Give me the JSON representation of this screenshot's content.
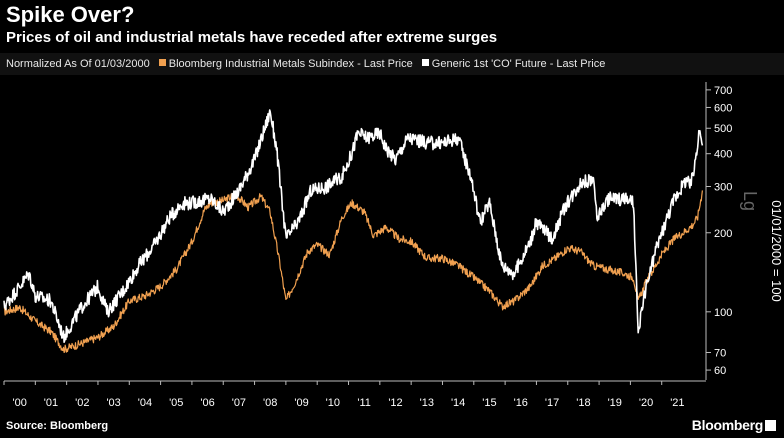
{
  "header": {
    "title": "Spike Over?",
    "subtitle": "Prices of oil and industrial metals have receded after extreme surges"
  },
  "legend": {
    "normalized_label": "Normalized As Of 01/03/2000",
    "series1_label": "Bloomberg Industrial Metals Subindex - Last Price",
    "series2_label": "Generic 1st 'CO' Future - Last Price"
  },
  "footer": {
    "source": "Source: Bloomberg",
    "brand": "Bloomberg"
  },
  "colors": {
    "metals": "#f0a050",
    "oil": "#ffffff",
    "background": "#000000"
  },
  "chart_data": {
    "type": "line",
    "title": "Spike Over?",
    "y_scale": "log",
    "ylim": [
      55,
      750
    ],
    "xlim": [
      2000.0,
      2022.35
    ],
    "ylabel": "01/01/2000 = 100",
    "ylabel_secondary": "Lg",
    "y_ticks": [
      60,
      70,
      100,
      200,
      300,
      400,
      500,
      600,
      700
    ],
    "x_tick_labels": [
      "'00",
      "'01",
      "'02",
      "'03",
      "'04",
      "'05",
      "'06",
      "'07",
      "'08",
      "'09",
      "'10",
      "'11",
      "'12",
      "'13",
      "'14",
      "'15",
      "'16",
      "'17",
      "'18",
      "'19",
      "'20",
      "'21"
    ],
    "series": [
      {
        "name": "Bloomberg Industrial Metals Subindex - Last Price",
        "color": "#f0a050",
        "x": [
          2000.0,
          2000.5,
          2001.0,
          2001.5,
          2001.9,
          2002.5,
          2003.0,
          2003.5,
          2004.0,
          2004.5,
          2005.0,
          2005.5,
          2006.0,
          2006.4,
          2006.6,
          2007.0,
          2007.4,
          2007.8,
          2008.2,
          2008.5,
          2008.8,
          2009.0,
          2009.3,
          2009.7,
          2010.0,
          2010.4,
          2010.8,
          2011.1,
          2011.5,
          2011.8,
          2012.2,
          2012.6,
          2013.0,
          2013.5,
          2014.0,
          2014.5,
          2015.0,
          2015.5,
          2015.9,
          2016.3,
          2016.8,
          2017.2,
          2017.6,
          2018.0,
          2018.4,
          2018.8,
          2019.3,
          2019.8,
          2020.1,
          2020.25,
          2020.5,
          2021.0,
          2021.4,
          2021.8,
          2022.0,
          2022.15,
          2022.3
        ],
        "values": [
          100,
          104,
          92,
          84,
          72,
          76,
          80,
          88,
          110,
          115,
          125,
          145,
          185,
          245,
          260,
          265,
          280,
          250,
          275,
          240,
          155,
          110,
          130,
          170,
          180,
          165,
          230,
          260,
          240,
          195,
          210,
          190,
          185,
          160,
          160,
          150,
          135,
          120,
          105,
          110,
          125,
          150,
          160,
          175,
          170,
          150,
          145,
          140,
          135,
          110,
          130,
          165,
          190,
          205,
          215,
          230,
          290
        ]
      },
      {
        "name": "Generic 1st 'CO' Future - Last Price",
        "color": "#ffffff",
        "x": [
          2000.0,
          2000.5,
          2000.8,
          2001.0,
          2001.5,
          2001.9,
          2002.5,
          2003.0,
          2003.3,
          2003.8,
          2004.3,
          2004.8,
          2005.3,
          2005.7,
          2006.0,
          2006.6,
          2007.0,
          2007.5,
          2008.0,
          2008.5,
          2008.7,
          2009.0,
          2009.4,
          2009.8,
          2010.3,
          2010.8,
          2011.1,
          2011.3,
          2011.6,
          2012.0,
          2012.2,
          2012.5,
          2012.9,
          2013.5,
          2014.0,
          2014.5,
          2014.9,
          2015.2,
          2015.5,
          2015.9,
          2016.3,
          2016.8,
          2017.0,
          2017.5,
          2017.9,
          2018.4,
          2018.8,
          2018.95,
          2019.3,
          2019.8,
          2020.1,
          2020.25,
          2020.4,
          2020.8,
          2021.0,
          2021.4,
          2021.8,
          2021.9,
          2022.0,
          2022.1,
          2022.2,
          2022.3
        ],
        "values": [
          105,
          125,
          140,
          115,
          110,
          80,
          105,
          125,
          100,
          120,
          150,
          180,
          230,
          260,
          260,
          270,
          240,
          290,
          380,
          580,
          420,
          190,
          220,
          290,
          300,
          330,
          400,
          480,
          460,
          480,
          420,
          380,
          460,
          440,
          440,
          460,
          330,
          220,
          260,
          150,
          140,
          185,
          220,
          190,
          250,
          310,
          320,
          230,
          270,
          270,
          260,
          80,
          110,
          170,
          200,
          270,
          320,
          300,
          330,
          400,
          500,
          430
        ]
      }
    ]
  }
}
